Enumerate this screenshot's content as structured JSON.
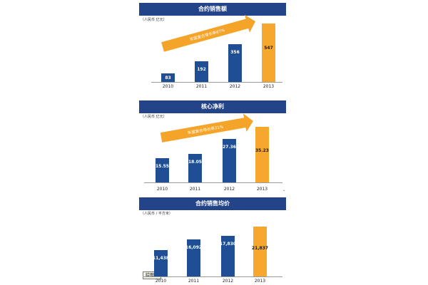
{
  "colors": {
    "band": "#24448a",
    "bar_blue": "#1f4e95",
    "bar_orange": "#f6a72e",
    "arrow": "#f5a42a"
  },
  "chart_data": [
    {
      "type": "bar",
      "title": "合约销售额",
      "unit_label": "（人民币  亿元）",
      "categories": [
        "2010",
        "2011",
        "2012",
        "2013"
      ],
      "values": [
        83,
        192,
        356,
        547
      ],
      "value_labels": [
        "83",
        "192",
        "356",
        "547"
      ],
      "highlight_index": 3,
      "annotation": "年度复合增长率87%",
      "ylim": [
        0,
        600
      ]
    },
    {
      "type": "bar",
      "title": "核心净利",
      "unit_label": "（人民币  亿元）",
      "categories": [
        "2010",
        "2011",
        "2012",
        "2013"
      ],
      "values": [
        15.55,
        18.05,
        27.36,
        35.23
      ],
      "value_labels": [
        "15.55",
        "18.05",
        "27.36",
        "35.23"
      ],
      "highlight_index": 3,
      "annotation": "年度复合增长率31%",
      "ylim": [
        0,
        40
      ]
    },
    {
      "type": "bar",
      "title": "合约销售均价",
      "unit_label": "（人民币 / 平方米）",
      "categories": [
        "2010",
        "2011",
        "2012",
        "2013"
      ],
      "values": [
        11438,
        16092,
        17830,
        21837
      ],
      "value_labels": [
        "11,438",
        "16,092",
        "17,830",
        "21,837"
      ],
      "highlight_index": 3,
      "ylim": [
        0,
        25000
      ]
    }
  ],
  "tooltip": "绘图区",
  "edge_mark": "⌄"
}
